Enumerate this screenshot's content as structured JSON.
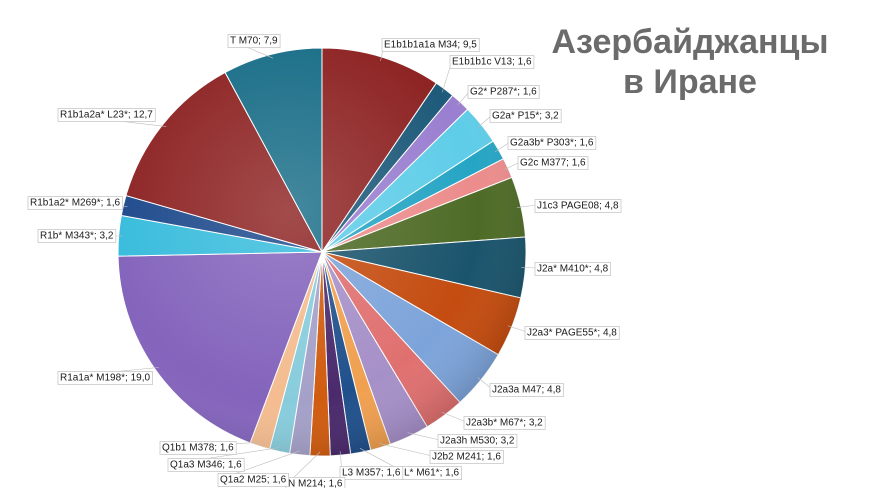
{
  "title_line1": "Азербайджанцы",
  "title_line2": "в Иране",
  "chart_data": {
    "type": "pie",
    "start_angle_deg": 0,
    "direction": "clockwise",
    "slices": [
      {
        "label": "E1b1b1a1a M34; 9,5",
        "value": 9.5,
        "color": "#8e2424"
      },
      {
        "label": "E1b1b1c V13; 1,6",
        "value": 1.6,
        "color": "#1e5a7a"
      },
      {
        "label": "G2* P287*; 1,6",
        "value": 1.6,
        "color": "#9a7fd0"
      },
      {
        "label": "G2a* P15*; 3,2",
        "value": 3.2,
        "color": "#5fcde8"
      },
      {
        "label": "G2a3b* P303*; 1,6",
        "value": 1.6,
        "color": "#26a5c4"
      },
      {
        "label": "G2c M377; 1,6",
        "value": 1.6,
        "color": "#ec8c8c"
      },
      {
        "label": "J1c3 PAGE08; 4,8",
        "value": 4.8,
        "color": "#4e6b26"
      },
      {
        "label": "J2a* M410*; 4,8",
        "value": 4.8,
        "color": "#1a546c"
      },
      {
        "label": "J2a3* PAGE55*; 4,8",
        "value": 4.8,
        "color": "#c44c10"
      },
      {
        "label": "J2a3a M47; 4,8",
        "value": 4.8,
        "color": "#7da4da"
      },
      {
        "label": "J2a3b* M67*; 3,2",
        "value": 3.2,
        "color": "#e07070"
      },
      {
        "label": "J2a3h M530; 3,2",
        "value": 3.2,
        "color": "#a690c8"
      },
      {
        "label": "J2b2 M241; 1,6",
        "value": 1.6,
        "color": "#f0a050"
      },
      {
        "label": "L* M61*; 1,6",
        "value": 1.6,
        "color": "#20508c"
      },
      {
        "label": "L3 M357; 1,6",
        "value": 1.6,
        "color": "#4a2a6c"
      },
      {
        "label": "N M214; 1,6",
        "value": 1.6,
        "color": "#d05c10"
      },
      {
        "label": "Q1a2 M25; 1,6",
        "value": 1.6,
        "color": "#a4a0c8"
      },
      {
        "label": "Q1a3 M346; 1,6",
        "value": 1.6,
        "color": "#88ccdc"
      },
      {
        "label": "Q1b1 M378; 1,6",
        "value": 1.6,
        "color": "#f4bc90"
      },
      {
        "label": "R1a1a* M198*; 19,0",
        "value": 19.0,
        "color": "#8464bc"
      },
      {
        "label": "R1b* M343*; 3,2",
        "value": 3.2,
        "color": "#38bcdc"
      },
      {
        "label": "R1b1a2* M269*; 1,6",
        "value": 1.6,
        "color": "#1e4a8c"
      },
      {
        "label": "R1b1a2a* L23*; 12,7",
        "value": 12.7,
        "color": "#8e2424"
      },
      {
        "label": "T M70; 7,9",
        "value": 7.9,
        "color": "#1a6e88"
      }
    ]
  }
}
